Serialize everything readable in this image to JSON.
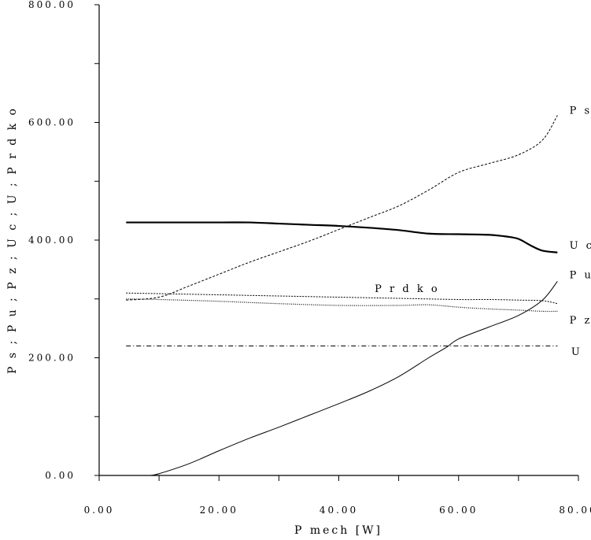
{
  "chart_data": {
    "type": "line",
    "xlabel": "P mech [W]",
    "ylabel": "P s ; P u ; P z ; U c ; U ; P r d k o",
    "xlim": [
      0,
      80
    ],
    "ylim": [
      0,
      800
    ],
    "x_ticks": [
      "0.00",
      "20.00",
      "40.00",
      "60.00",
      "80.00"
    ],
    "y_ticks": [
      "0.00",
      "200.00",
      "400.00",
      "600.00",
      "800.00"
    ],
    "grid": false,
    "legend": "inline labels at line ends",
    "series": [
      {
        "name": "P s",
        "style": "dashed",
        "x": [
          4.5,
          10,
          15,
          20,
          25,
          30,
          35,
          40,
          45,
          50,
          55,
          60,
          65,
          70,
          74,
          76.5
        ],
        "y": [
          298,
          303,
          322,
          342,
          362,
          380,
          398,
          418,
          438,
          458,
          485,
          515,
          530,
          545,
          570,
          612
        ]
      },
      {
        "name": "U c",
        "style": "solid-thick",
        "x": [
          4.5,
          10,
          20,
          25,
          30,
          35,
          40,
          45,
          50,
          55,
          60,
          65,
          68,
          70,
          72,
          74,
          76.5
        ],
        "y": [
          430,
          430,
          430,
          430,
          428,
          426,
          424,
          421,
          417,
          411,
          410,
          409,
          406,
          402,
          391,
          382,
          379
        ]
      },
      {
        "name": "P u",
        "style": "solid",
        "x": [
          8.5,
          10,
          15,
          20,
          25,
          30,
          35,
          40,
          45,
          50,
          55,
          58,
          60,
          65,
          70,
          74,
          76.5
        ],
        "y": [
          0,
          3,
          20,
          42,
          63,
          82,
          102,
          122,
          143,
          168,
          200,
          218,
          232,
          252,
          272,
          298,
          330
        ]
      },
      {
        "name": "P r d k o",
        "style": "dashed-fine",
        "x": [
          4.5,
          10,
          20,
          30,
          40,
          50,
          60,
          65,
          70,
          74,
          76.5
        ],
        "y": [
          310,
          309,
          307,
          305,
          303,
          301,
          299,
          299,
          298,
          297,
          292
        ]
      },
      {
        "name": "P z",
        "style": "dotted",
        "x": [
          4.5,
          10,
          20,
          30,
          40,
          50,
          55,
          60,
          65,
          70,
          74,
          76.5
        ],
        "y": [
          300,
          299,
          296,
          292,
          289,
          289,
          290,
          286,
          283,
          281,
          279,
          279
        ]
      },
      {
        "name": "U",
        "style": "dashdot",
        "x": [
          4.5,
          76.5
        ],
        "y": [
          220,
          220
        ]
      }
    ],
    "annotations": [
      {
        "text": "P s",
        "x": 78.5,
        "y": 615
      },
      {
        "text": "U c",
        "x": 78.5,
        "y": 385
      },
      {
        "text": "P u",
        "x": 78.5,
        "y": 335
      },
      {
        "text": "P r d k o",
        "x": 46,
        "y": 312
      },
      {
        "text": "P z",
        "x": 78.5,
        "y": 258
      },
      {
        "text": "U",
        "x": 78.8,
        "y": 205
      }
    ]
  }
}
